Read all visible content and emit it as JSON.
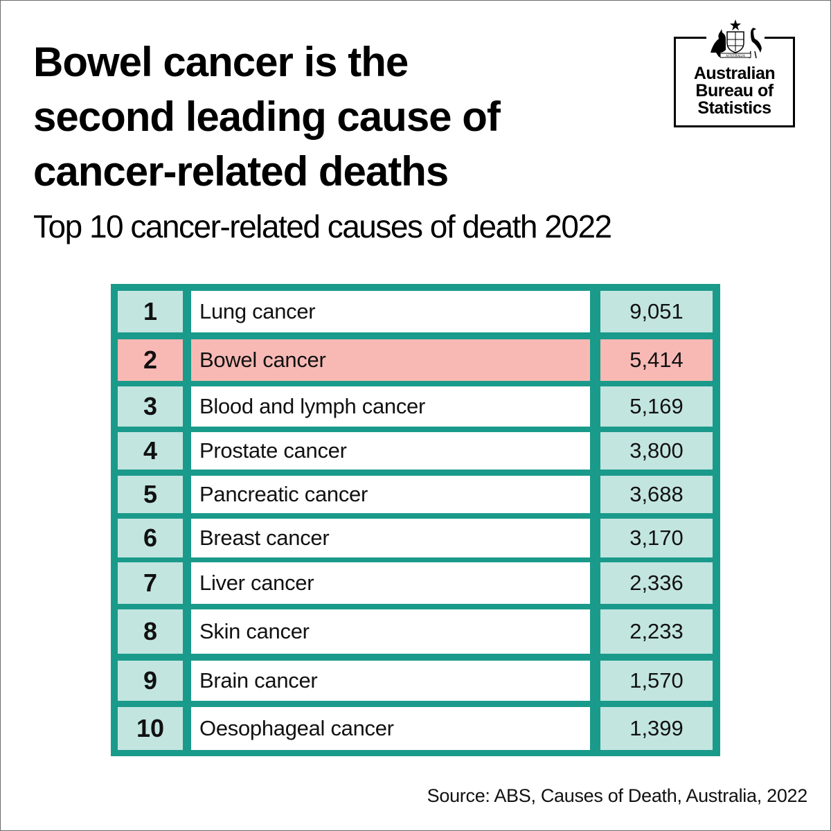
{
  "header": {
    "title_lines": [
      "Bowel cancer is the",
      "second leading cause of",
      "cancer-related deaths"
    ],
    "subtitle": "Top 10 cancer-related causes of death 2022"
  },
  "logo": {
    "lines": [
      "Australian",
      "Bureau of",
      "Statistics"
    ],
    "crest_text": "AUSTRALIA",
    "icon": "coat-of-arms-icon"
  },
  "colors": {
    "teal_border": "#1a9a8a",
    "teal_light": "#c2e5e0",
    "highlight": "#f8b9b4"
  },
  "chart_data": {
    "type": "table",
    "title": "Bowel cancer is the second leading cause of cancer-related deaths",
    "subtitle": "Top 10 cancer-related causes of death 2022",
    "highlight_rank": 2,
    "rows": [
      {
        "rank": "1",
        "cause": "Lung cancer",
        "deaths": "9,051",
        "value": 9051
      },
      {
        "rank": "2",
        "cause": "Bowel cancer",
        "deaths": "5,414",
        "value": 5414
      },
      {
        "rank": "3",
        "cause": "Blood and lymph cancer",
        "deaths": "5,169",
        "value": 5169
      },
      {
        "rank": "4",
        "cause": "Prostate cancer",
        "deaths": "3,800",
        "value": 3800
      },
      {
        "rank": "5",
        "cause": "Pancreatic cancer",
        "deaths": "3,688",
        "value": 3688
      },
      {
        "rank": "6",
        "cause": "Breast cancer",
        "deaths": "3,170",
        "value": 3170
      },
      {
        "rank": "7",
        "cause": "Liver cancer",
        "deaths": "2,336",
        "value": 2336
      },
      {
        "rank": "8",
        "cause": "Skin cancer",
        "deaths": "2,233",
        "value": 2233
      },
      {
        "rank": "9",
        "cause": "Brain cancer",
        "deaths": "1,570",
        "value": 1570
      },
      {
        "rank": "10",
        "cause": "Oesophageal cancer",
        "deaths": "1,399",
        "value": 1399
      }
    ]
  },
  "footer": {
    "source": "Source: ABS, Causes of Death, Australia, 2022"
  }
}
